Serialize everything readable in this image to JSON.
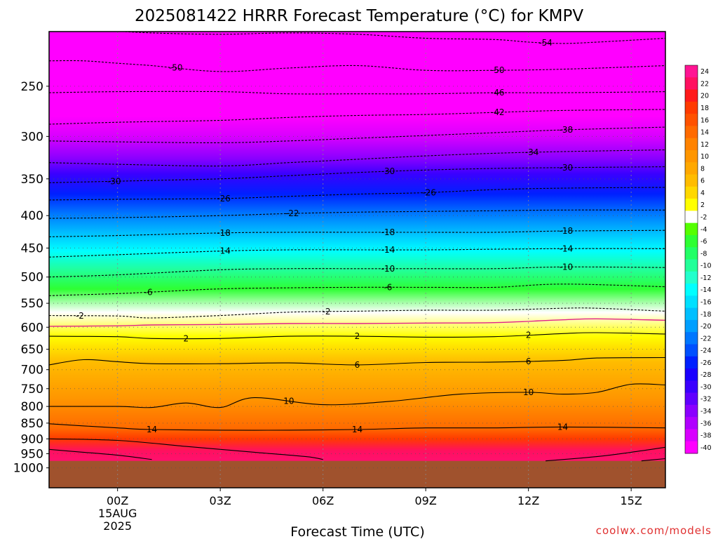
{
  "chart_data": {
    "type": "heatmap",
    "title": "2025081422 HRRR Forecast Temperature (°C) for KMPV",
    "xlabel": "Forecast Time (UTC)",
    "ylabel": "",
    "credit": "coolwx.com/models",
    "x_range_hours": [
      -2,
      16
    ],
    "y_scale": "log-pressure",
    "y_range_hPa": [
      1075,
      205
    ],
    "x_ticks": [
      {
        "hour": 0,
        "label": "00Z",
        "sub": [
          "15AUG",
          "2025"
        ]
      },
      {
        "hour": 3,
        "label": "03Z"
      },
      {
        "hour": 6,
        "label": "06Z"
      },
      {
        "hour": 9,
        "label": "09Z"
      },
      {
        "hour": 12,
        "label": "12Z"
      },
      {
        "hour": 15,
        "label": "15Z"
      }
    ],
    "y_ticks": [
      250,
      300,
      350,
      400,
      450,
      500,
      550,
      600,
      650,
      700,
      750,
      800,
      850,
      900,
      950,
      1000
    ],
    "colorbar": {
      "ticks": [
        24,
        22,
        20,
        18,
        16,
        14,
        12,
        10,
        8,
        6,
        4,
        2,
        -2,
        -4,
        -6,
        -8,
        -10,
        -12,
        -14,
        -16,
        -18,
        -20,
        -22,
        -24,
        -26,
        -28,
        -30,
        -32,
        -34,
        -36,
        -38,
        -40
      ],
      "colors": [
        "#ff1493",
        "#ff1060",
        "#ff1a1a",
        "#ff3a00",
        "#ff5200",
        "#ff6a00",
        "#ff8200",
        "#ff9600",
        "#ffa800",
        "#ffbc00",
        "#ffd800",
        "#ffff00",
        "#ffffff",
        "#55ff00",
        "#2eff33",
        "#22ff66",
        "#22ff99",
        "#22ffcc",
        "#00ffff",
        "#00e0ff",
        "#00bfff",
        "#009fff",
        "#0077ff",
        "#0050ff",
        "#0020ff",
        "#1a00ff",
        "#3a00ff",
        "#6000ff",
        "#8a00ff",
        "#b000ff",
        "#d800ff",
        "#ff00ff"
      ]
    },
    "ground_color": "#a0522d",
    "surface_pressure_hPa": 975,
    "freezing_line_color": "#e0208a",
    "contours": [
      {
        "value": -54,
        "dashed": true,
        "x": [
          -0.5,
          1,
          3,
          5,
          7,
          9,
          11,
          12,
          13,
          14,
          16
        ],
        "p": [
          204,
          206,
          207,
          206,
          207,
          210,
          211,
          213,
          214,
          213,
          210
        ],
        "labels": [
          {
            "hour": 12.5,
            "text": "-54"
          }
        ]
      },
      {
        "value": -50,
        "dashed": true,
        "x": [
          -2,
          -1,
          0,
          1,
          3,
          5,
          7,
          9,
          11,
          13,
          16
        ],
        "p": [
          228,
          228,
          230,
          232,
          237,
          234,
          232,
          236,
          236,
          235,
          232
        ],
        "labels": [
          {
            "hour": 1.7,
            "text": "-50"
          },
          {
            "hour": 11.1,
            "text": "-50"
          }
        ]
      },
      {
        "value": -46,
        "dashed": true,
        "x": [
          -2,
          0,
          3,
          5,
          7,
          9,
          11,
          13,
          16
        ],
        "p": [
          256,
          255,
          255,
          257,
          257,
          257,
          256,
          256,
          255
        ],
        "labels": [
          {
            "hour": 11.1,
            "text": "-46"
          }
        ]
      },
      {
        "value": -42,
        "dashed": true,
        "x": [
          -2,
          0,
          3,
          5,
          7,
          9,
          11,
          13,
          16
        ],
        "p": [
          287,
          285,
          283,
          280,
          278,
          277,
          275,
          273,
          272
        ],
        "labels": [
          {
            "hour": 11.1,
            "text": "-42"
          }
        ]
      },
      {
        "value": -38,
        "dashed": true,
        "x": [
          -2,
          0,
          3,
          5,
          7,
          9,
          11,
          13,
          16
        ],
        "p": [
          305,
          306,
          307,
          305,
          302,
          299,
          296,
          293,
          290
        ],
        "labels": [
          {
            "hour": 13.1,
            "text": "-38"
          }
        ]
      },
      {
        "value": -34,
        "dashed": true,
        "x": [
          -2,
          0,
          3,
          5,
          7,
          9,
          11,
          13,
          16
        ],
        "p": [
          330,
          332,
          334,
          330,
          326,
          322,
          319,
          317,
          315
        ],
        "labels": [
          {
            "hour": 12.1,
            "text": "-34"
          }
        ]
      },
      {
        "value": -30,
        "dashed": true,
        "x": [
          -2,
          0,
          3,
          5,
          7,
          9,
          11,
          13,
          16
        ],
        "p": [
          355,
          353,
          350,
          346,
          342,
          339,
          337,
          336,
          335
        ],
        "labels": [
          {
            "hour": -0.1,
            "text": "-30"
          },
          {
            "hour": 7.9,
            "text": "-30"
          },
          {
            "hour": 13.1,
            "text": "-30"
          }
        ]
      },
      {
        "value": -26,
        "dashed": true,
        "x": [
          -2,
          0,
          3,
          5,
          7,
          9,
          11,
          13,
          16
        ],
        "p": [
          378,
          377,
          376,
          373,
          370,
          368,
          364,
          362,
          361
        ],
        "labels": [
          {
            "hour": 3.1,
            "text": "-26"
          },
          {
            "hour": 9.1,
            "text": "-26"
          }
        ]
      },
      {
        "value": -22,
        "dashed": true,
        "x": [
          -2,
          0,
          3,
          5,
          7,
          9,
          11,
          13,
          16
        ],
        "p": [
          404,
          403,
          400,
          397,
          395,
          394,
          393,
          392,
          392
        ],
        "labels": [
          {
            "hour": 5.1,
            "text": "-22"
          }
        ]
      },
      {
        "value": -18,
        "dashed": true,
        "x": [
          -2,
          0,
          3,
          5,
          7,
          9,
          11,
          13,
          16
        ],
        "p": [
          432,
          430,
          426,
          425,
          425,
          425,
          425,
          423,
          422
        ],
        "labels": [
          {
            "hour": 3.1,
            "text": "-18"
          },
          {
            "hour": 7.9,
            "text": "-18"
          },
          {
            "hour": 13.1,
            "text": "-18"
          }
        ]
      },
      {
        "value": -14,
        "dashed": true,
        "x": [
          -2,
          0,
          3,
          5,
          7,
          9,
          11,
          13,
          16
        ],
        "p": [
          465,
          461,
          455,
          453,
          453,
          453,
          452,
          451,
          451
        ],
        "labels": [
          {
            "hour": 3.1,
            "text": "-14"
          },
          {
            "hour": 7.9,
            "text": "-14"
          },
          {
            "hour": 13.1,
            "text": "-14"
          }
        ]
      },
      {
        "value": -10,
        "dashed": true,
        "x": [
          -2,
          0,
          3,
          5,
          7,
          9,
          11,
          13,
          16
        ],
        "p": [
          500,
          496,
          487,
          485,
          485,
          485,
          485,
          482,
          483
        ],
        "labels": [
          {
            "hour": 7.9,
            "text": "-10"
          },
          {
            "hour": 13.1,
            "text": "-10"
          }
        ]
      },
      {
        "value": -6,
        "dashed": true,
        "x": [
          -2,
          0,
          1,
          3,
          5,
          7,
          9,
          11,
          13,
          16
        ],
        "p": [
          535,
          531,
          528,
          522,
          520,
          519,
          519,
          519,
          513,
          518
        ],
        "labels": [
          {
            "hour": 0.9,
            "text": "-6"
          },
          {
            "hour": 7.9,
            "text": "-6"
          }
        ]
      },
      {
        "value": -2,
        "dashed": true,
        "x": [
          -2,
          0,
          1,
          3,
          5,
          7,
          9,
          11,
          13,
          14,
          16
        ],
        "p": [
          575,
          576,
          580,
          575,
          568,
          566,
          564,
          564,
          560,
          560,
          566
        ],
        "labels": [
          {
            "hour": -1.1,
            "text": "-2"
          },
          {
            "hour": 6.1,
            "text": "-2"
          }
        ]
      },
      {
        "value": 2,
        "dashed": false,
        "x": [
          -2,
          0,
          1,
          3,
          5,
          7,
          9,
          11,
          13,
          14,
          16
        ],
        "p": [
          620,
          621,
          625,
          625,
          620,
          620,
          622,
          621,
          614,
          612,
          615
        ],
        "labels": [
          {
            "hour": 2,
            "text": "2"
          },
          {
            "hour": 7,
            "text": "2"
          },
          {
            "hour": 12,
            "text": "2"
          }
        ]
      },
      {
        "value": 6,
        "dashed": false,
        "x": [
          -2,
          -1,
          0,
          1,
          3,
          5,
          7,
          9,
          11,
          13,
          14,
          16
        ],
        "p": [
          688,
          675,
          680,
          685,
          685,
          683,
          688,
          682,
          681,
          677,
          671,
          670
        ],
        "labels": [
          {
            "hour": 7,
            "text": "6"
          },
          {
            "hour": 12,
            "text": "6"
          }
        ]
      },
      {
        "value": 10,
        "dashed": false,
        "x": [
          -2,
          0,
          1,
          2,
          3,
          4,
          6,
          8,
          10,
          12,
          13,
          14,
          15,
          16
        ],
        "p": [
          800,
          800,
          803,
          790,
          803,
          775,
          795,
          785,
          765,
          760,
          765,
          760,
          738,
          740
        ],
        "labels": [
          {
            "hour": 5,
            "text": "10"
          },
          {
            "hour": 12,
            "text": "10"
          }
        ]
      },
      {
        "value": 14,
        "dashed": false,
        "x": [
          -2,
          0,
          1,
          3,
          5,
          7,
          9,
          11,
          13,
          16
        ],
        "p": [
          852,
          865,
          870,
          872,
          872,
          870,
          865,
          865,
          862,
          865
        ],
        "labels": [
          {
            "hour": 1,
            "text": "14"
          },
          {
            "hour": 7,
            "text": "14"
          },
          {
            "hour": 13,
            "text": "14"
          }
        ]
      },
      {
        "value": 18,
        "dashed": false,
        "x": [
          -2,
          0,
          2,
          4,
          5.5,
          6
        ],
        "p": [
          900,
          905,
          925,
          945,
          960,
          970
        ],
        "labels": []
      },
      {
        "value": 18,
        "dashed": false,
        "x": [
          12.5,
          14,
          15,
          16
        ],
        "p": [
          975,
          960,
          945,
          928
        ],
        "labels": []
      },
      {
        "value": 22,
        "dashed": false,
        "x": [
          -2,
          -1,
          0,
          1
        ],
        "p": [
          935,
          945,
          955,
          970
        ],
        "labels": []
      },
      {
        "value": 22,
        "dashed": false,
        "x": [
          15.3,
          16
        ],
        "p": [
          975,
          967
        ],
        "labels": []
      }
    ]
  }
}
